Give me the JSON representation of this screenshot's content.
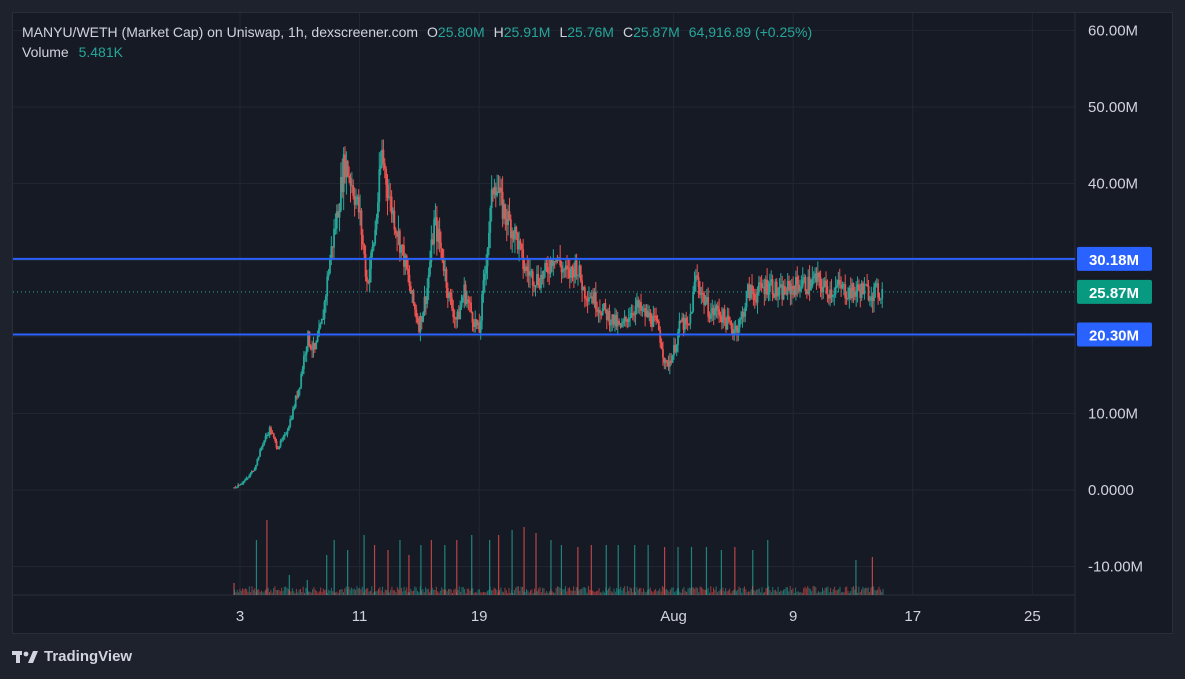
{
  "header": {
    "title": "MANYU/WETH (Market Cap) on Uniswap, 1h, dexscreener.com",
    "o_label": "O",
    "o_value": "25.80M",
    "h_label": "H",
    "h_value": "25.91M",
    "l_label": "L",
    "l_value": "25.76M",
    "c_label": "C",
    "c_value": "25.87M",
    "change": "64,916.89 (+0.25%)",
    "volume_label": "Volume",
    "volume_value": "5.481K"
  },
  "branding": {
    "logo_text": "TradingView",
    "logo_icon": "tradingview-logo-icon"
  },
  "colors": {
    "up": "#26a69a",
    "down": "#ef5350",
    "level_line": "#2962ff",
    "level_badge": "#2962ff",
    "last_badge": "#089981",
    "text": "#d1d4dc"
  },
  "chart_data": {
    "type": "candlestick",
    "title": "MANYU/WETH (Market Cap) on Uniswap, 1h, dexscreener.com",
    "y_unit": "market cap (USD)",
    "ylim": [
      -12000000,
      63000000
    ],
    "y_ticks": [
      {
        "value": 60000000,
        "label": "60.00M"
      },
      {
        "value": 50000000,
        "label": "50.00M"
      },
      {
        "value": 40000000,
        "label": "40.00M"
      },
      {
        "value": 10000000,
        "label": "10.00M"
      },
      {
        "value": 0,
        "label": "0.0000"
      },
      {
        "value": -10000000,
        "label": "-10.00M"
      }
    ],
    "x_ticks": [
      {
        "label": "3",
        "day": 3
      },
      {
        "label": "11",
        "day": 11
      },
      {
        "label": "19",
        "day": 19
      },
      {
        "label": "Aug",
        "day": 32
      },
      {
        "label": "9",
        "day": 40
      },
      {
        "label": "17",
        "day": 48
      },
      {
        "label": "25",
        "day": 56
      }
    ],
    "xlim_days": [
      1.4,
      60.2
    ],
    "horizontal_levels": [
      {
        "value": 30180000,
        "label": "30.18M",
        "style": "solid"
      },
      {
        "value": 20300000,
        "label": "20.30M",
        "style": "solid"
      }
    ],
    "last_price": {
      "value": 25870000,
      "label": "25.87M",
      "style": "dotted"
    },
    "price_path_days": [
      2.6,
      3.5,
      4.0,
      4.5,
      5.0,
      5.5,
      6.0,
      6.5,
      7.0,
      7.5,
      8.0,
      8.5,
      9.0,
      9.5,
      10.0,
      10.5,
      11.0,
      11.5,
      12.0,
      12.5,
      13.0,
      13.5,
      14.0,
      14.5,
      15.0,
      15.5,
      16.0,
      16.5,
      17.0,
      17.5,
      18.0,
      18.5,
      19.0,
      19.5,
      20.0,
      20.5,
      21.0,
      21.5,
      22.0,
      22.5,
      23.0,
      23.5,
      24.0,
      24.5,
      25.0,
      25.5,
      26.0,
      26.5,
      27.0,
      27.5,
      28.0,
      28.5,
      29.0,
      29.5,
      30.0,
      30.5,
      31.0,
      31.5,
      32.0,
      32.5,
      33.0,
      33.5,
      34.0,
      34.5,
      35.0,
      35.5,
      36.0,
      36.5,
      37.0,
      37.5,
      38.0,
      38.5,
      39.0,
      39.5,
      40.0,
      40.5,
      41.0,
      41.5,
      42.0,
      42.5,
      43.0,
      43.5,
      44.0,
      44.5,
      45.0,
      45.5,
      46.0
    ],
    "price_path_values_m": [
      0.3,
      1.5,
      3.0,
      6.0,
      8.0,
      5.5,
      7.0,
      10.0,
      14.0,
      20.0,
      18.0,
      22.0,
      30.0,
      36.0,
      43.0,
      40.0,
      36.0,
      27.0,
      33.0,
      44.0,
      38.0,
      34.0,
      30.0,
      25.0,
      21.5,
      26.0,
      35.0,
      31.0,
      25.0,
      22.0,
      26.0,
      23.0,
      20.5,
      31.0,
      41.0,
      37.0,
      35.0,
      33.0,
      29.0,
      28.0,
      27.5,
      28.5,
      31.0,
      29.0,
      28.0,
      29.5,
      26.0,
      25.5,
      24.0,
      23.0,
      22.0,
      21.0,
      23.0,
      24.0,
      23.0,
      22.5,
      21.0,
      16.0,
      18.0,
      22.0,
      21.0,
      28.0,
      25.0,
      23.0,
      23.5,
      22.0,
      21.0,
      22.0,
      26.0,
      25.5,
      26.5,
      27.0,
      25.5,
      26.0,
      26.5,
      27.0,
      26.8,
      27.5,
      26.5,
      26.0,
      26.5,
      26.0,
      25.8,
      26.2,
      25.9,
      25.8,
      25.87
    ],
    "volume_unit": "relative",
    "volume_spikes": [
      {
        "day": 2.6,
        "v": 0.12,
        "dir": "down"
      },
      {
        "day": 4.1,
        "v": 0.55,
        "dir": "up"
      },
      {
        "day": 4.8,
        "v": 0.75,
        "dir": "down"
      },
      {
        "day": 6.3,
        "v": 0.2,
        "dir": "up"
      },
      {
        "day": 7.5,
        "v": 0.15,
        "dir": "up"
      },
      {
        "day": 8.8,
        "v": 0.4,
        "dir": "up"
      },
      {
        "day": 9.3,
        "v": 0.55,
        "dir": "up"
      },
      {
        "day": 10.2,
        "v": 0.45,
        "dir": "up"
      },
      {
        "day": 11.3,
        "v": 0.6,
        "dir": "up"
      },
      {
        "day": 12.0,
        "v": 0.5,
        "dir": "down"
      },
      {
        "day": 12.9,
        "v": 0.45,
        "dir": "down"
      },
      {
        "day": 13.7,
        "v": 0.55,
        "dir": "up"
      },
      {
        "day": 14.3,
        "v": 0.4,
        "dir": "down"
      },
      {
        "day": 15.1,
        "v": 0.5,
        "dir": "up"
      },
      {
        "day": 15.8,
        "v": 0.55,
        "dir": "down"
      },
      {
        "day": 16.7,
        "v": 0.5,
        "dir": "up"
      },
      {
        "day": 17.5,
        "v": 0.55,
        "dir": "down"
      },
      {
        "day": 18.5,
        "v": 0.6,
        "dir": "up"
      },
      {
        "day": 19.7,
        "v": 0.55,
        "dir": "up"
      },
      {
        "day": 20.3,
        "v": 0.6,
        "dir": "down"
      },
      {
        "day": 21.2,
        "v": 0.65,
        "dir": "up"
      },
      {
        "day": 22.0,
        "v": 0.68,
        "dir": "down"
      },
      {
        "day": 22.8,
        "v": 0.62,
        "dir": "down"
      },
      {
        "day": 23.8,
        "v": 0.55,
        "dir": "up"
      },
      {
        "day": 24.5,
        "v": 0.5,
        "dir": "up"
      },
      {
        "day": 25.6,
        "v": 0.48,
        "dir": "down"
      },
      {
        "day": 26.5,
        "v": 0.5,
        "dir": "down"
      },
      {
        "day": 27.5,
        "v": 0.5,
        "dir": "up"
      },
      {
        "day": 28.3,
        "v": 0.5,
        "dir": "up"
      },
      {
        "day": 29.4,
        "v": 0.5,
        "dir": "up"
      },
      {
        "day": 30.3,
        "v": 0.5,
        "dir": "up"
      },
      {
        "day": 31.4,
        "v": 0.48,
        "dir": "down"
      },
      {
        "day": 32.3,
        "v": 0.48,
        "dir": "up"
      },
      {
        "day": 33.2,
        "v": 0.48,
        "dir": "up"
      },
      {
        "day": 34.2,
        "v": 0.48,
        "dir": "up"
      },
      {
        "day": 35.2,
        "v": 0.45,
        "dir": "up"
      },
      {
        "day": 36.1,
        "v": 0.48,
        "dir": "down"
      },
      {
        "day": 37.3,
        "v": 0.45,
        "dir": "up"
      },
      {
        "day": 38.3,
        "v": 0.55,
        "dir": "up"
      },
      {
        "day": 44.2,
        "v": 0.35,
        "dir": "up"
      },
      {
        "day": 45.3,
        "v": 0.38,
        "dir": "down"
      }
    ]
  }
}
